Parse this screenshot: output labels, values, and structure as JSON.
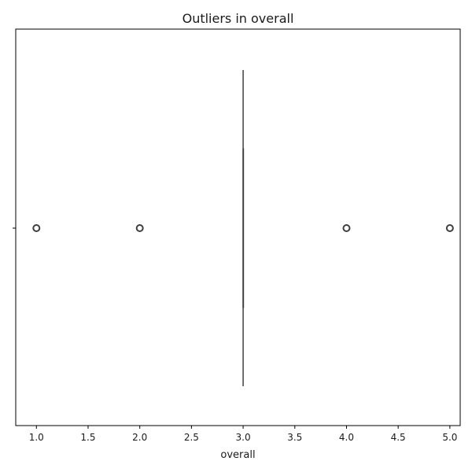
{
  "chart_data": {
    "type": "box",
    "title": "Outliers in overall",
    "xlabel": "overall",
    "ylabel": "",
    "xlim": [
      0.8,
      5.1
    ],
    "xticks": [
      1.0,
      1.5,
      2.0,
      2.5,
      3.0,
      3.5,
      4.0,
      4.5,
      5.0
    ],
    "xtick_labels": [
      "1.0",
      "1.5",
      "2.0",
      "2.5",
      "3.0",
      "3.5",
      "4.0",
      "4.5",
      "5.0"
    ],
    "orientation": "horizontal",
    "grid": false,
    "box": {
      "min": 3.0,
      "q1": 3.0,
      "median": 3.0,
      "q3": 3.0,
      "max": 3.0,
      "outliers": [
        1.0,
        2.0,
        4.0,
        5.0
      ]
    },
    "colors": {
      "box_line": "#3f3f3f",
      "outlier": "#3f3f3f",
      "axis": "#000000"
    }
  }
}
